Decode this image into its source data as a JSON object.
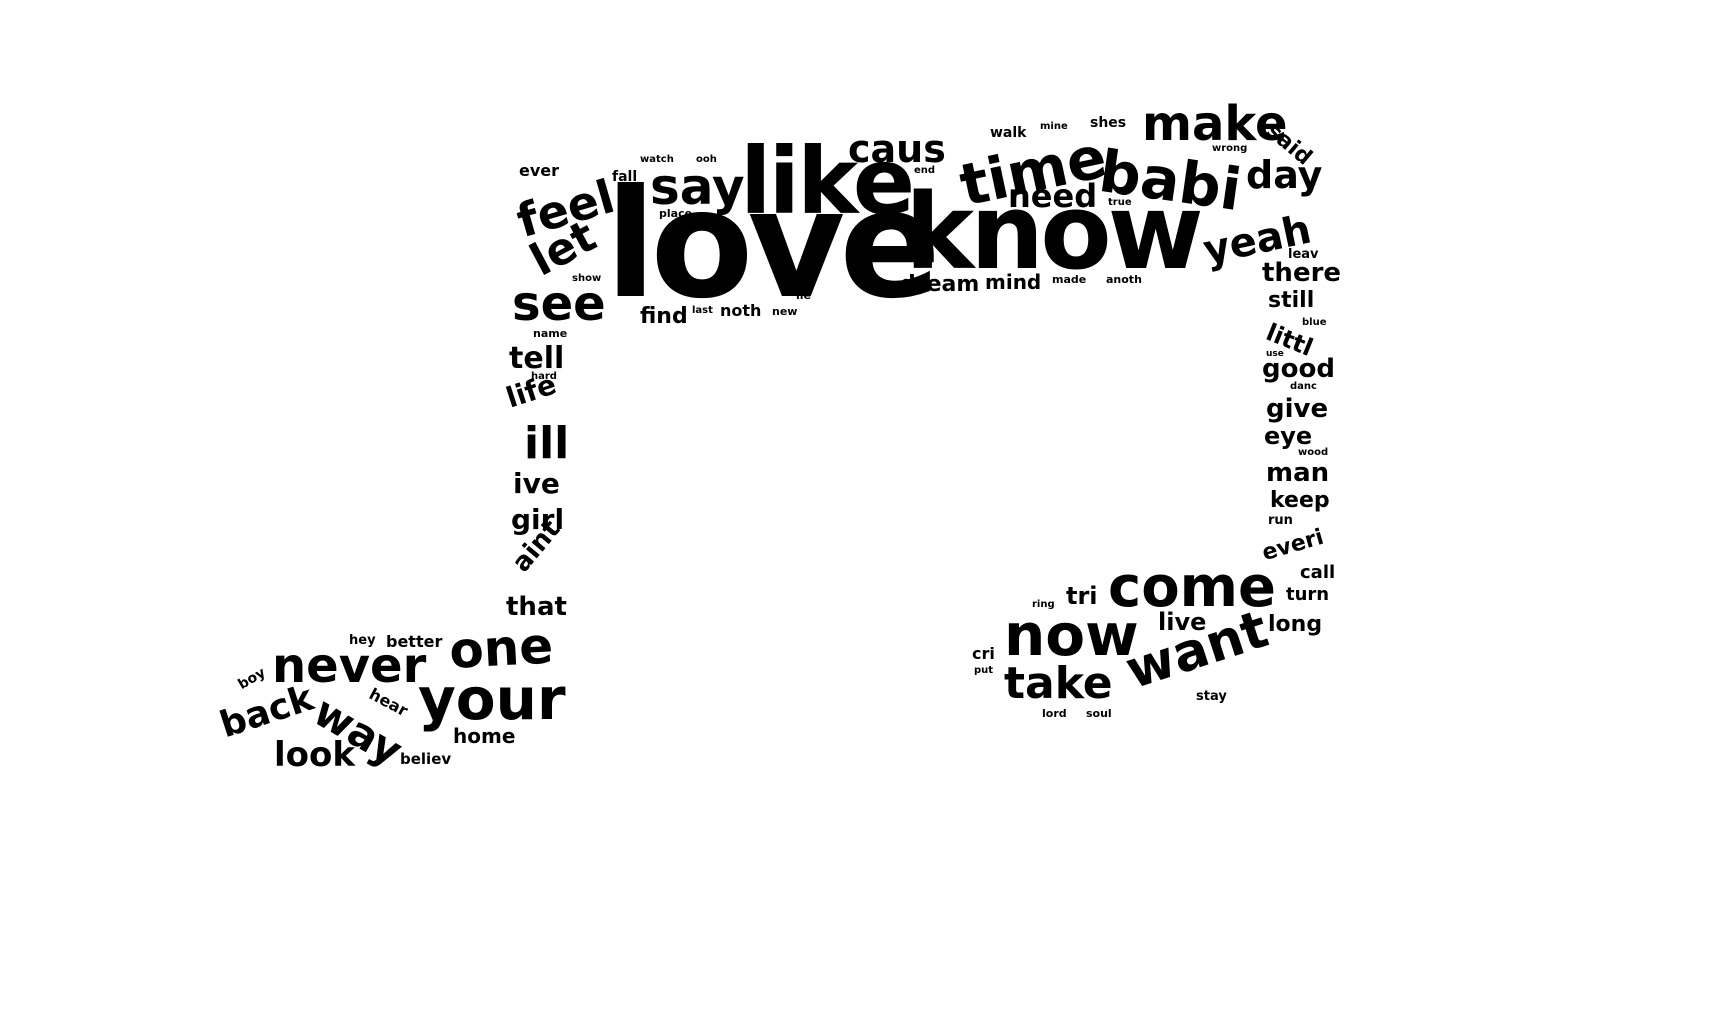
{
  "ink_color": "#000000",
  "background_color": "#ffffff",
  "words": [
    "love",
    "know",
    "like",
    "time",
    "babi",
    "make",
    "caus",
    "say",
    "feel",
    "let",
    "see",
    "day",
    "yeah",
    "need",
    "dream",
    "mind",
    "find",
    "noth",
    "ever",
    "fall",
    "walk",
    "shes",
    "said",
    "there",
    "still",
    "littl",
    "good",
    "give",
    "eye",
    "man",
    "keep",
    "everi",
    "call",
    "turn",
    "long",
    "come",
    "now",
    "want",
    "take",
    "tri",
    "live",
    "cri",
    "stay",
    "tell",
    "life",
    "ill",
    "ive",
    "girl",
    "aint",
    "that",
    "never",
    "one",
    "your",
    "way",
    "back",
    "look",
    "home",
    "hear",
    "better",
    "hey",
    "boy",
    "believ",
    "name",
    "hard",
    "place",
    "watch",
    "ooh",
    "show",
    "lie",
    "made",
    "anoth",
    "leav",
    "wrong",
    "mine",
    "end",
    "true",
    "blue",
    "danc",
    "use",
    "run",
    "lord",
    "soul",
    "put",
    "ring",
    "new",
    "last",
    "wood"
  ]
}
